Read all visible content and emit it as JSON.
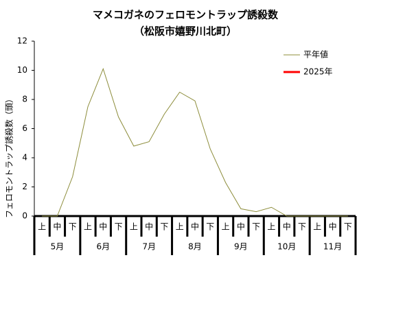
{
  "chart_data": {
    "type": "line",
    "title": "マメコガネのフェロモントラップ誘殺数",
    "subtitle": "（松阪市嬉野川北町）",
    "y_label": "フェロモントラップ誘殺数（頭）",
    "categories": [
      "上",
      "中",
      "下",
      "上",
      "中",
      "下",
      "上",
      "中",
      "下",
      "上",
      "中",
      "下",
      "上",
      "中",
      "下",
      "上",
      "中",
      "下",
      "上",
      "中",
      "下"
    ],
    "groups": [
      "5月",
      "6月",
      "7月",
      "8月",
      "9月",
      "10月",
      "11月"
    ],
    "series": [
      {
        "name": "平年値",
        "color": "#8c8c3a",
        "values": [
          0,
          0,
          2.7,
          7.5,
          10.1,
          6.8,
          4.8,
          5.1,
          7.0,
          8.5,
          7.9,
          4.6,
          2.3,
          0.5,
          0.3,
          0.6,
          0,
          0,
          0,
          0,
          0
        ]
      },
      {
        "name": "2025年",
        "color": "#ff0000",
        "values": [
          null,
          null,
          null,
          null,
          null,
          null,
          null,
          null,
          null,
          null,
          null,
          null,
          null,
          null,
          null,
          null,
          null,
          null,
          null,
          null,
          null
        ]
      }
    ],
    "ylim": [
      0,
      12
    ],
    "yticks": [
      0,
      2,
      4,
      6,
      8,
      10,
      12
    ],
    "grid": false,
    "legend": "upper right"
  }
}
